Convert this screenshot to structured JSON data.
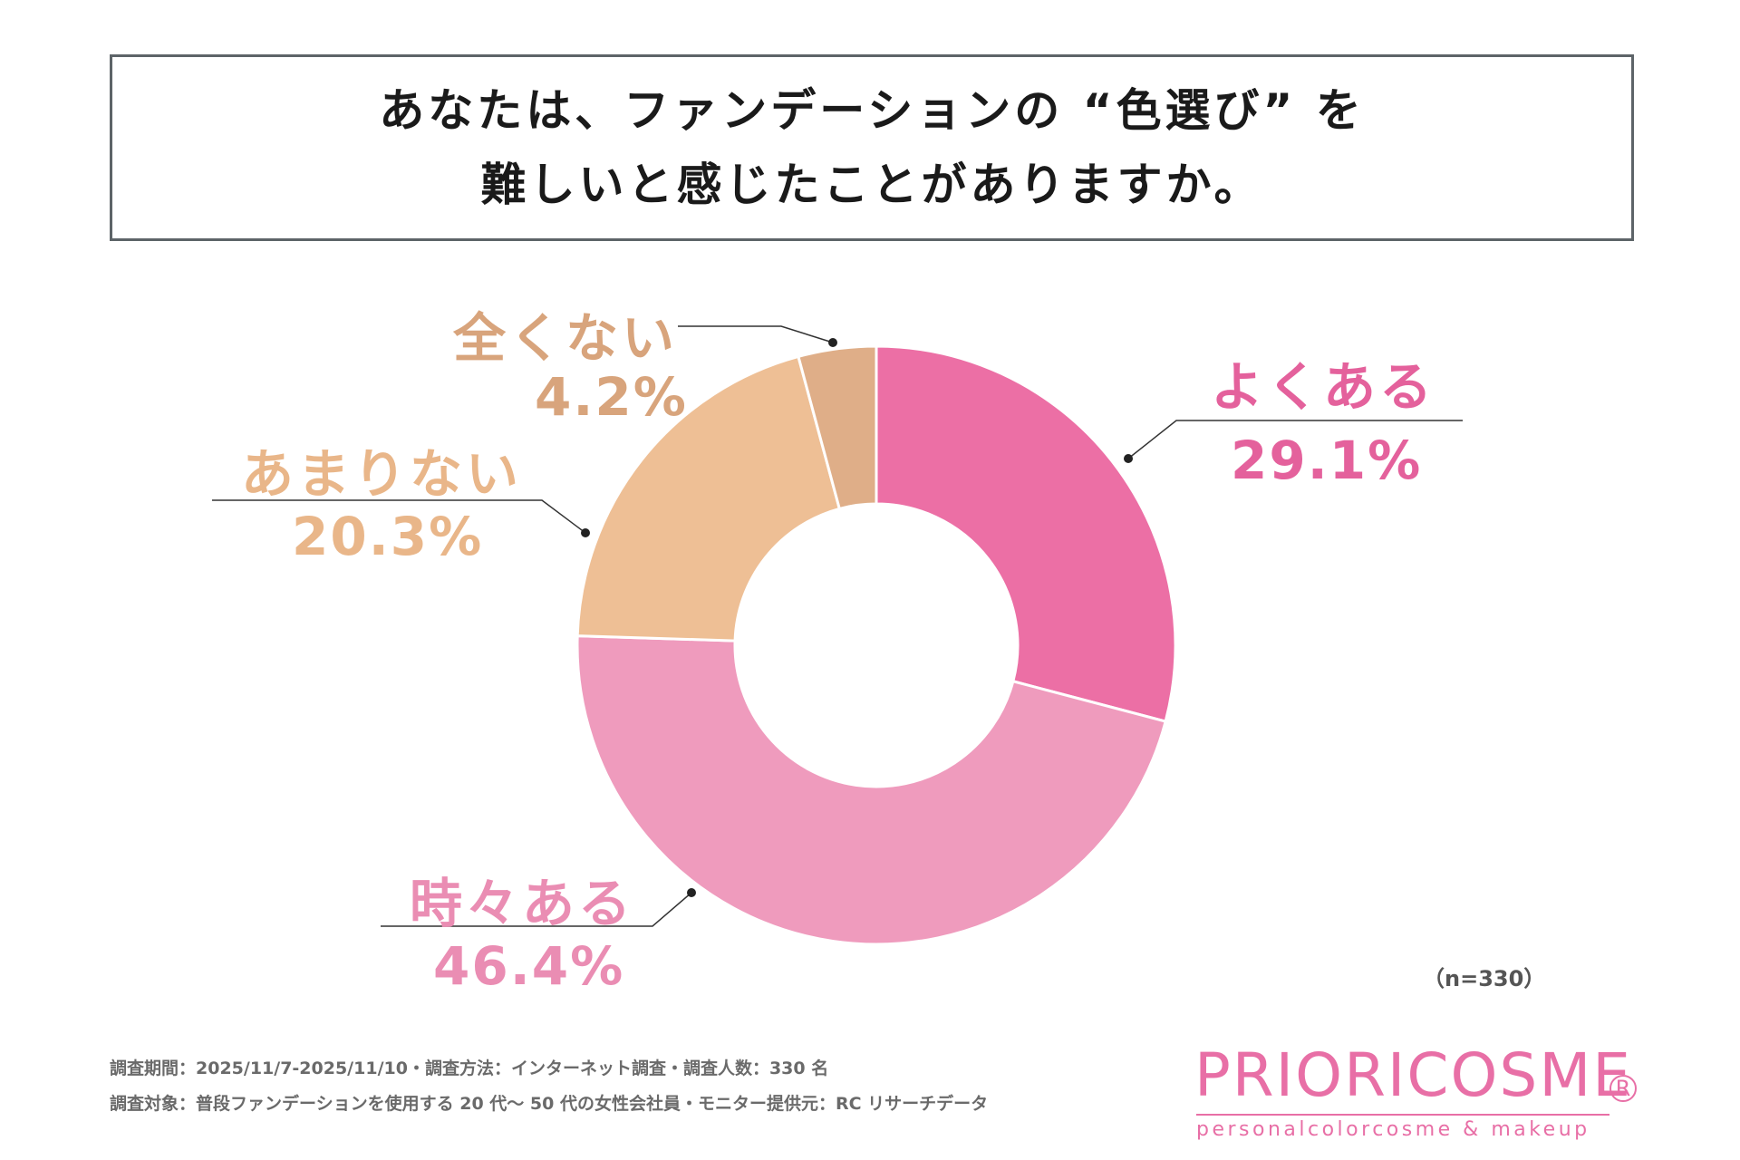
{
  "title": {
    "line1": "あなたは、ファンデーションの “色選び” を",
    "line2": "難しいと感じたことがありますか。"
  },
  "chart_data": {
    "type": "pie",
    "style": "donut",
    "title": "あなたは、ファンデーションの “色選び” を難しいと感じたことがありますか。",
    "categories": [
      "よくある",
      "時々ある",
      "あまりない",
      "全くない"
    ],
    "values": [
      29.1,
      46.4,
      20.3,
      4.2
    ],
    "value_labels": [
      "29.1%",
      "46.4%",
      "20.3%",
      "4.2%"
    ],
    "colors": [
      "#ec6fa5",
      "#ef9bbd",
      "#eebf95",
      "#dfae88"
    ],
    "label_colors": [
      "#e4619c",
      "#ea8db3",
      "#e9b689",
      "#d8a47c"
    ]
  },
  "sample_note": "（n=330）",
  "footer": {
    "line1": "調査期間：2025/11/7-2025/11/10・調査方法：インターネット調査・調査人数：330 名",
    "line2": "調査対象：普段ファンデーションを使用する 20 代～ 50 代の女性会社員・モニター提供元：RC リサーチデータ"
  },
  "brand": {
    "name": "PRIORICOSME",
    "registered": "R",
    "tagline": "personalcolorcosme & makeup"
  }
}
